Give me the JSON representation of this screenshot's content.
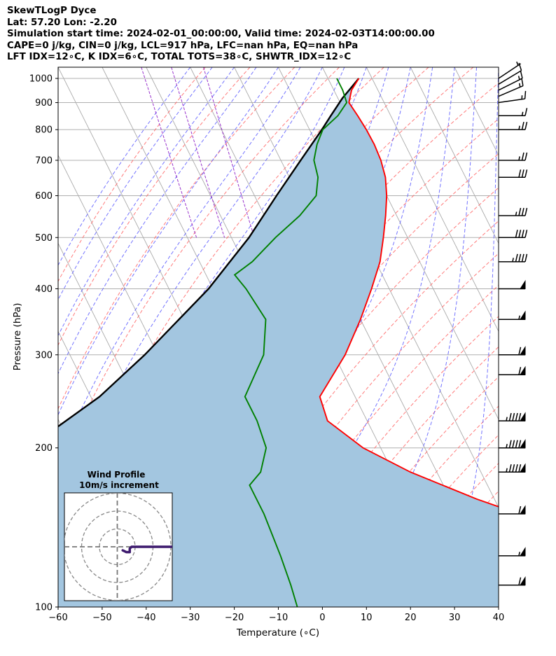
{
  "header": {
    "title": "SkewTLogP Dyce",
    "location": "Lat: 57.20   Lon: -2.20",
    "times": "Simulation start time: 2024-02-01_00:00:00, Valid time: 2024-02-03T14:00:00.00",
    "parameters": "CAPE=0 j/kg, CIN=0 j/kg, LCL=917 hPa, LFC=nan hPa, EQ=nan hPa",
    "indices": "LFT IDX=12∘C, K IDX=6∘C, TOTAL TOTS=38∘C, SHWTR_IDX=12∘C"
  },
  "chart_data": {
    "type": "line",
    "subtype": "skew-t log-p",
    "xlabel": "Temperature (∘C)",
    "ylabel": "Pressure (hPa)",
    "xlim": [
      -60,
      40
    ],
    "ylim": [
      1050,
      100
    ],
    "y_scale": "log",
    "x_ticks": [
      -60,
      -50,
      -40,
      -30,
      -20,
      -10,
      0,
      10,
      20,
      30,
      40
    ],
    "y_ticks": [
      100,
      200,
      300,
      400,
      500,
      600,
      700,
      800,
      900,
      1000
    ],
    "grid": true,
    "colors": {
      "temperature": "#ff0000",
      "dewpoint": "#008000",
      "parcel": "#000000",
      "shading": "#a3c6e0",
      "isotherm": "#aaaaaa",
      "dry_adiabat": "#ff6464",
      "moist_adiabat": "#5a5aff",
      "mixing_ratio": "#9933cc"
    },
    "series": [
      {
        "points": [
          [
            1000,
            7
          ],
          [
            950,
            4
          ],
          [
            900,
            2
          ],
          [
            850,
            2.5
          ],
          [
            800,
            2.9
          ],
          [
            750,
            3
          ],
          [
            700,
            2.7
          ],
          [
            650,
            1.8
          ],
          [
            600,
            0
          ],
          [
            550,
            -2.5
          ],
          [
            500,
            -5.5
          ],
          [
            450,
            -9
          ],
          [
            400,
            -14
          ],
          [
            350,
            -20
          ],
          [
            300,
            -27.5
          ],
          [
            275,
            -32.5
          ],
          [
            250,
            -38
          ],
          [
            225,
            -39
          ],
          [
            200,
            -34
          ],
          [
            180,
            -26
          ],
          [
            160,
            -14
          ],
          [
            150,
            -6
          ],
          [
            125,
            2
          ],
          [
            110,
            7
          ],
          [
            100,
            10
          ]
        ]
      },
      {
        "points": [
          [
            1000,
            2
          ],
          [
            950,
            2
          ],
          [
            900,
            1.5
          ],
          [
            850,
            -2
          ],
          [
            800,
            -7
          ],
          [
            750,
            -10
          ],
          [
            700,
            -12.5
          ],
          [
            650,
            -13.5
          ],
          [
            600,
            -16
          ],
          [
            550,
            -22
          ],
          [
            500,
            -30
          ],
          [
            450,
            -38
          ],
          [
            425,
            -43.5
          ],
          [
            400,
            -42.5
          ],
          [
            350,
            -41.5
          ],
          [
            300,
            -46
          ],
          [
            250,
            -55
          ],
          [
            225,
            -55
          ],
          [
            200,
            -56
          ],
          [
            180,
            -60
          ],
          [
            170,
            -64
          ],
          [
            150,
            -64
          ],
          [
            125,
            -65
          ],
          [
            110,
            -66
          ],
          [
            100,
            -67
          ]
        ]
      },
      {
        "points": [
          [
            1000,
            7
          ],
          [
            917,
            1.0
          ],
          [
            850,
            -3.6
          ],
          [
            800,
            -7.2
          ],
          [
            700,
            -15.5
          ],
          [
            600,
            -25
          ],
          [
            500,
            -36
          ],
          [
            400,
            -51
          ],
          [
            300,
            -73
          ],
          [
            250,
            -88
          ],
          [
            200,
            -110
          ],
          [
            150,
            -143
          ],
          [
            100,
            -195
          ]
        ]
      }
    ],
    "wind_barbs": [
      {
        "p": 1000,
        "u": -3,
        "v": -2
      },
      {
        "p": 975,
        "u": -5,
        "v": -3
      },
      {
        "p": 950,
        "u": -6,
        "v": -3
      },
      {
        "p": 925,
        "u": -7,
        "v": -3
      },
      {
        "p": 900,
        "u": -7,
        "v": -1
      },
      {
        "p": 850,
        "u": -8,
        "v": 0
      },
      {
        "p": 800,
        "u": -12,
        "v": 0
      },
      {
        "p": 700,
        "u": -13,
        "v": 0
      },
      {
        "p": 650,
        "u": -15,
        "v": 0
      },
      {
        "p": 550,
        "u": -17,
        "v": 0
      },
      {
        "p": 500,
        "u": -20,
        "v": 0
      },
      {
        "p": 450,
        "u": -22,
        "v": 0
      },
      {
        "p": 400,
        "u": -26,
        "v": 0
      },
      {
        "p": 350,
        "u": -28,
        "v": 0
      },
      {
        "p": 300,
        "u": -30,
        "v": 0
      },
      {
        "p": 275,
        "u": -32,
        "v": 0
      },
      {
        "p": 225,
        "u": -50,
        "v": 0
      },
      {
        "p": 200,
        "u": -50,
        "v": 0
      },
      {
        "p": 180,
        "u": -50,
        "v": 0
      },
      {
        "p": 150,
        "u": -32,
        "v": 0
      },
      {
        "p": 125,
        "u": -28,
        "v": 0
      },
      {
        "p": 110,
        "u": -30,
        "v": 0
      }
    ],
    "inset": {
      "title": "Wind Profile",
      "subtitle": "10m/s increment",
      "ring_increment_ms": 10,
      "hodograph": [
        [
          -3,
          -2
        ],
        [
          -5,
          -3
        ],
        [
          -6,
          -3
        ],
        [
          -7,
          -3
        ],
        [
          -7,
          -1
        ],
        [
          -8,
          0
        ],
        [
          -12,
          0
        ],
        [
          -13,
          0
        ],
        [
          -15,
          0
        ],
        [
          -17,
          0
        ],
        [
          -20,
          0
        ],
        [
          -22,
          0
        ],
        [
          -26,
          0
        ],
        [
          -28,
          0
        ],
        [
          -30,
          0
        ],
        [
          -32,
          0
        ],
        [
          -35,
          0
        ]
      ]
    }
  }
}
